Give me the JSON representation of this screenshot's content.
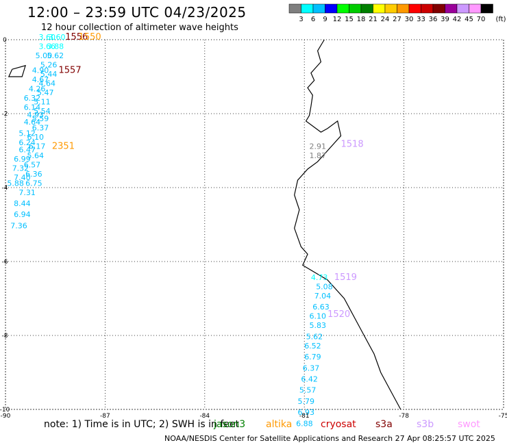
{
  "header": {
    "title": "12:00 – 23:59 UTC 04/23/2025",
    "subtitle": "12 hour collection of altimeter wave heights"
  },
  "legend": {
    "unit": "(ft)",
    "colors": [
      "#7f7f7f",
      "#00ffff",
      "#00bfff",
      "#0000ff",
      "#00ff00",
      "#00cc00",
      "#008000",
      "#ffff00",
      "#ffcc00",
      "#ff9900",
      "#ff0000",
      "#cc0000",
      "#800000",
      "#990099",
      "#cc99ff",
      "#ff99ff",
      "#000000"
    ],
    "labels": [
      "3",
      "6",
      "9",
      "12",
      "15",
      "18",
      "21",
      "24",
      "27",
      "30",
      "33",
      "36",
      "39",
      "42",
      "45",
      "70"
    ]
  },
  "map": {
    "lon_range": [
      -90,
      -75
    ],
    "lat_range": [
      -10,
      0
    ],
    "lon_ticks": [
      "-90",
      "-87",
      "-84",
      "-81",
      "-78",
      "-75"
    ],
    "lat_ticks": [
      "0",
      "-2",
      "-4",
      "-6",
      "-8",
      "-10"
    ],
    "grid": true,
    "pass_labels": [
      {
        "text": "1556",
        "color": "#800000",
        "lon": -88.2,
        "lat": 0.0
      },
      {
        "text": "1550",
        "color": "#ff9900",
        "lon": -87.8,
        "lat": 0.0
      },
      {
        "text": "1557",
        "color": "#800000",
        "lon": -88.4,
        "lat": -0.9
      },
      {
        "text": "2351",
        "color": "#ff9900",
        "lon": -88.6,
        "lat": -2.95
      },
      {
        "text": "1518",
        "color": "#cc99ff",
        "lon": -79.9,
        "lat": -2.9
      },
      {
        "text": "1519",
        "color": "#cc99ff",
        "lon": -80.1,
        "lat": -6.5
      },
      {
        "text": "1520",
        "color": "#cc99ff",
        "lon": -80.3,
        "lat": -7.5
      }
    ],
    "wave_labels": [
      {
        "text": "3.60",
        "color": "#00ffff",
        "lon": -89.0,
        "lat": 0.0
      },
      {
        "text": "3.60",
        "color": "#00ffff",
        "lon": -88.7,
        "lat": 0.0
      },
      {
        "text": "3.66",
        "color": "#00ffff",
        "lon": -89.0,
        "lat": -0.25
      },
      {
        "text": "3.88",
        "color": "#00ffff",
        "lon": -88.75,
        "lat": -0.25
      },
      {
        "text": "5.00",
        "color": "#00bfff",
        "lon": -89.1,
        "lat": -0.5
      },
      {
        "text": "5.62",
        "color": "#00bfff",
        "lon": -88.75,
        "lat": -0.5
      },
      {
        "text": "5.26",
        "color": "#00bfff",
        "lon": -88.95,
        "lat": -0.75
      },
      {
        "text": "4.90",
        "color": "#00bfff",
        "lon": -89.2,
        "lat": -0.9
      },
      {
        "text": "5.44",
        "color": "#00bfff",
        "lon": -88.95,
        "lat": -1.0
      },
      {
        "text": "4.67",
        "color": "#00bfff",
        "lon": -89.2,
        "lat": -1.15
      },
      {
        "text": "4.64",
        "color": "#00bfff",
        "lon": -89.0,
        "lat": -1.25
      },
      {
        "text": "4.26",
        "color": "#00bfff",
        "lon": -89.3,
        "lat": -1.4
      },
      {
        "text": "5.47",
        "color": "#00bfff",
        "lon": -89.05,
        "lat": -1.5
      },
      {
        "text": "6.32",
        "color": "#00bfff",
        "lon": -89.45,
        "lat": -1.65
      },
      {
        "text": "5.11",
        "color": "#00bfff",
        "lon": -89.15,
        "lat": -1.75
      },
      {
        "text": "6.14",
        "color": "#00bfff",
        "lon": -89.45,
        "lat": -1.9
      },
      {
        "text": "5.54",
        "color": "#00bfff",
        "lon": -89.15,
        "lat": -2.0
      },
      {
        "text": "4.93",
        "color": "#00bfff",
        "lon": -89.35,
        "lat": -2.1
      },
      {
        "text": "5.59",
        "color": "#00bfff",
        "lon": -89.2,
        "lat": -2.2
      },
      {
        "text": "4.64",
        "color": "#00bfff",
        "lon": -89.45,
        "lat": -2.3
      },
      {
        "text": "6.37",
        "color": "#00bfff",
        "lon": -89.2,
        "lat": -2.45
      },
      {
        "text": "5.12",
        "color": "#00bfff",
        "lon": -89.6,
        "lat": -2.6
      },
      {
        "text": "6.10",
        "color": "#00bfff",
        "lon": -89.35,
        "lat": -2.7
      },
      {
        "text": "6.24",
        "color": "#00bfff",
        "lon": -89.6,
        "lat": -2.85
      },
      {
        "text": "6.17",
        "color": "#00bfff",
        "lon": -89.3,
        "lat": -2.95
      },
      {
        "text": "6.47",
        "color": "#00bfff",
        "lon": -89.6,
        "lat": -3.05
      },
      {
        "text": "5.64",
        "color": "#00bfff",
        "lon": -89.35,
        "lat": -3.2
      },
      {
        "text": "6.99",
        "color": "#00bfff",
        "lon": -89.75,
        "lat": -3.3
      },
      {
        "text": "6.57",
        "color": "#00bfff",
        "lon": -89.45,
        "lat": -3.45
      },
      {
        "text": "7.32",
        "color": "#00bfff",
        "lon": -89.8,
        "lat": -3.55
      },
      {
        "text": "6.36",
        "color": "#00bfff",
        "lon": -89.4,
        "lat": -3.7
      },
      {
        "text": "7.40",
        "color": "#00bfff",
        "lon": -89.75,
        "lat": -3.8
      },
      {
        "text": "5.88",
        "color": "#00bfff",
        "lon": -89.95,
        "lat": -3.95
      },
      {
        "text": "6.75",
        "color": "#00bfff",
        "lon": -89.4,
        "lat": -3.95
      },
      {
        "text": "7.31",
        "color": "#00bfff",
        "lon": -89.6,
        "lat": -4.2
      },
      {
        "text": "8.44",
        "color": "#00bfff",
        "lon": -89.75,
        "lat": -4.5
      },
      {
        "text": "6.94",
        "color": "#00bfff",
        "lon": -89.75,
        "lat": -4.8
      },
      {
        "text": "7.36",
        "color": "#00bfff",
        "lon": -89.85,
        "lat": -5.1
      },
      {
        "text": "2.91",
        "color": "#7f7f7f",
        "lon": -80.85,
        "lat": -2.95
      },
      {
        "text": "1.87",
        "color": "#7f7f7f",
        "lon": -80.85,
        "lat": -3.2
      },
      {
        "text": "4.73",
        "color": "#00ffff",
        "lon": -80.8,
        "lat": -6.5
      },
      {
        "text": "5.08",
        "color": "#00bfff",
        "lon": -80.65,
        "lat": -6.75
      },
      {
        "text": "7.04",
        "color": "#00bfff",
        "lon": -80.7,
        "lat": -7.0
      },
      {
        "text": "6.63",
        "color": "#00bfff",
        "lon": -80.75,
        "lat": -7.3
      },
      {
        "text": "6.10",
        "color": "#00bfff",
        "lon": -80.85,
        "lat": -7.55
      },
      {
        "text": "5.83",
        "color": "#00bfff",
        "lon": -80.85,
        "lat": -7.8
      },
      {
        "text": "5.62",
        "color": "#00bfff",
        "lon": -80.95,
        "lat": -8.1
      },
      {
        "text": "6.52",
        "color": "#00bfff",
        "lon": -81.0,
        "lat": -8.35
      },
      {
        "text": "6.79",
        "color": "#00bfff",
        "lon": -81.0,
        "lat": -8.65
      },
      {
        "text": "6.37",
        "color": "#00bfff",
        "lon": -81.05,
        "lat": -8.95
      },
      {
        "text": "6.42",
        "color": "#00bfff",
        "lon": -81.1,
        "lat": -9.25
      },
      {
        "text": "5.57",
        "color": "#00bfff",
        "lon": -81.15,
        "lat": -9.55
      },
      {
        "text": "5.79",
        "color": "#00bfff",
        "lon": -81.2,
        "lat": -9.85
      },
      {
        "text": "6.93",
        "color": "#00bfff",
        "lon": -81.2,
        "lat": -10.15
      },
      {
        "text": "6.88",
        "color": "#00bfff",
        "lon": -81.25,
        "lat": -10.45
      }
    ],
    "coastline": [
      [
        -80.4,
        0.0
      ],
      [
        -80.6,
        -0.3
      ],
      [
        -80.5,
        -0.6
      ],
      [
        -80.8,
        -0.9
      ],
      [
        -80.7,
        -1.1
      ],
      [
        -80.9,
        -1.3
      ],
      [
        -80.75,
        -1.5
      ],
      [
        -80.8,
        -1.8
      ],
      [
        -80.85,
        -2.05
      ],
      [
        -80.95,
        -2.2
      ],
      [
        -80.5,
        -2.5
      ],
      [
        -80.3,
        -2.4
      ],
      [
        -80.0,
        -2.2
      ],
      [
        -79.9,
        -2.6
      ],
      [
        -80.3,
        -3.0
      ],
      [
        -80.6,
        -3.3
      ],
      [
        -80.9,
        -3.5
      ],
      [
        -81.2,
        -3.8
      ],
      [
        -81.3,
        -4.2
      ],
      [
        -81.15,
        -4.6
      ],
      [
        -81.3,
        -5.1
      ],
      [
        -81.1,
        -5.6
      ],
      [
        -80.9,
        -5.8
      ],
      [
        -81.05,
        -6.1
      ],
      [
        -80.3,
        -6.5
      ],
      [
        -79.8,
        -7.0
      ],
      [
        -79.5,
        -7.5
      ],
      [
        -79.2,
        -8.0
      ],
      [
        -78.9,
        -8.5
      ],
      [
        -78.7,
        -9.0
      ],
      [
        -78.4,
        -9.5
      ],
      [
        -78.1,
        -10.0
      ]
    ],
    "islands": [
      [
        [
          -89.8,
          -0.8
        ],
        [
          -89.4,
          -0.7
        ],
        [
          -89.5,
          -1.0
        ],
        [
          -89.9,
          -1.0
        ],
        [
          -89.8,
          -0.8
        ]
      ]
    ]
  },
  "footer": {
    "note": "note: 1) Time is in UTC; 2) SWH is in feet",
    "missions": [
      {
        "name": "jason3",
        "color": "#008000"
      },
      {
        "name": "altika",
        "color": "#ff9900"
      },
      {
        "name": "cryosat",
        "color": "#cc0000"
      },
      {
        "name": "s3a",
        "color": "#800000"
      },
      {
        "name": "s3b",
        "color": "#cc99ff"
      },
      {
        "name": "swot",
        "color": "#ff99ff"
      }
    ],
    "credit": "NOAA/NESDIS Center for Satellite Applications and Research    27 Apr 08:25:57 UTC 2025"
  }
}
